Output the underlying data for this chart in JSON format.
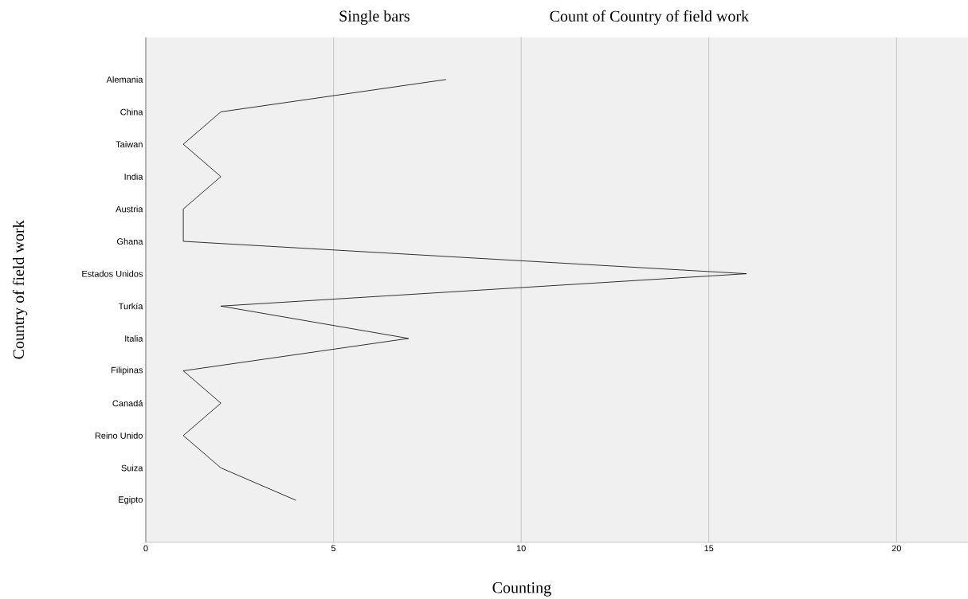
{
  "chart_data": {
    "type": "line",
    "orientation": "horizontal",
    "title": "Single bars",
    "subtitle": "Count of Country of field work",
    "xlabel": "Counting",
    "ylabel": "Country of field work",
    "categories": [
      "Alemania",
      "China",
      "Taiwan",
      "India",
      "Austria",
      "Ghana",
      "Estados Unidos",
      "Turkía",
      "Italia",
      "Filipinas",
      "Canadá",
      "Reino Unido",
      "Suiza",
      "Egipto"
    ],
    "series": [
      {
        "color": "#000000",
        "values": [
          8,
          2,
          1,
          2,
          1,
          1,
          16,
          2,
          7,
          1,
          2,
          1,
          2,
          4
        ]
      }
    ],
    "xlim": [
      0,
      21.9
    ],
    "xticks": [
      0,
      5,
      10,
      15,
      20
    ],
    "grid": "x"
  }
}
